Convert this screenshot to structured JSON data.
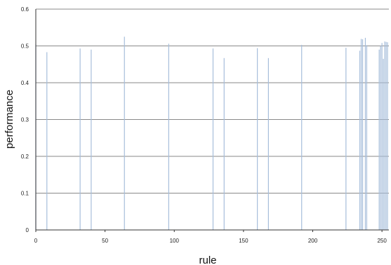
{
  "chart_data": {
    "type": "bar",
    "title": "",
    "xlabel": "rule",
    "ylabel": "performance",
    "xlim": [
      0,
      255
    ],
    "ylim": [
      0,
      0.6
    ],
    "xticks": [
      0,
      50,
      100,
      150,
      200,
      250
    ],
    "xtick_labels": [
      "0",
      "50",
      "100",
      "150",
      "200",
      "250"
    ],
    "yticks": [
      0,
      0.1,
      0.2,
      0.3,
      0.4,
      0.5,
      0.6
    ],
    "ytick_labels": [
      "0",
      "0.1",
      "0.2",
      "0.3",
      "0.4",
      "0.5",
      "0.6"
    ],
    "grid": "horizontal",
    "legend": "none",
    "bar_color": "#a7bedb",
    "grid_color": "#8a8a8a",
    "x": [
      0,
      8,
      32,
      40,
      64,
      96,
      128,
      136,
      160,
      168,
      192,
      224,
      234,
      235,
      236,
      238,
      239,
      248,
      249,
      250,
      251,
      252,
      253,
      254
    ],
    "values": [
      0.505,
      0.483,
      0.493,
      0.49,
      0.525,
      0.506,
      0.493,
      0.467,
      0.494,
      0.467,
      0.503,
      0.495,
      0.487,
      0.519,
      0.518,
      0.522,
      0.502,
      0.49,
      0.5,
      0.508,
      0.465,
      0.512,
      0.511,
      0.51
    ]
  }
}
